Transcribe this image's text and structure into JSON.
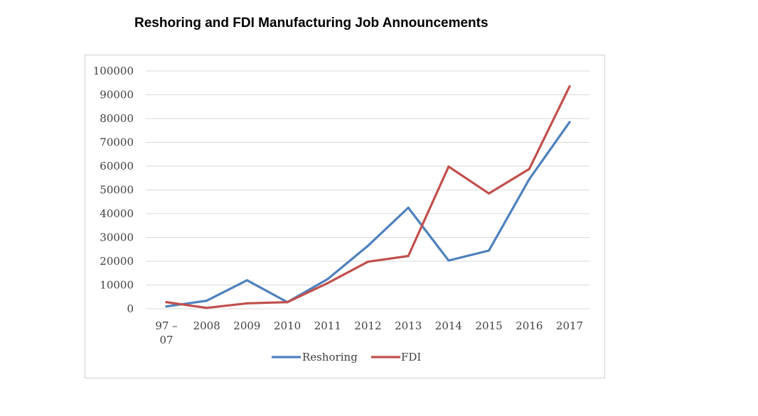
{
  "chart_data": {
    "type": "line",
    "title": "Reshoring and FDI Manufacturing Job Announcements",
    "categories": [
      "97 – 07",
      "2008",
      "2009",
      "2010",
      "2011",
      "2012",
      "2013",
      "2014",
      "2015",
      "2016",
      "2017"
    ],
    "ylim": [
      0,
      100000
    ],
    "yticks": [
      "100000",
      "90000",
      "80000",
      "70000",
      "60000",
      "50000",
      "40000",
      "30000",
      "20000",
      "10000",
      "0"
    ],
    "grid": true,
    "legend_position": "bottom",
    "series": [
      {
        "name": "Reshoring",
        "color": "#4f81bd",
        "values": [
          1000,
          3400,
          12000,
          2800,
          12500,
          26500,
          42500,
          20300,
          24500,
          54500,
          78500
        ]
      },
      {
        "name": "FDI",
        "color": "#c0504d",
        "values": [
          2800,
          400,
          2300,
          2800,
          10800,
          19800,
          22200,
          59800,
          48500,
          58800,
          93500
        ]
      }
    ]
  }
}
